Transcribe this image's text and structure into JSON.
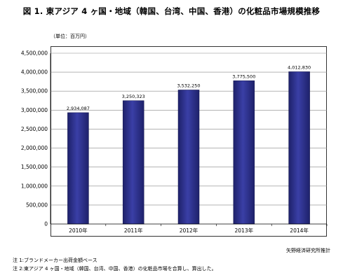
{
  "title": "図 1.  東アジア 4 ヶ国・地域（韓国、台湾、中国、香港）の化粧品市場規模推移",
  "unit_label": "（単位：百万円）",
  "source": "矢野経済研究所推計",
  "notes": [
    "注 1:ブランドメーカー出荷金額ベース",
    "注 2:東アジア 4 ヶ国・地域（韓国、台湾、中国、香港）の化粧品市場を合算し、算出した。"
  ],
  "colors": {
    "bar": "#2b2e85",
    "bar_highlight": "#5a5fc0",
    "grid": "#888888"
  },
  "chart_data": {
    "type": "bar",
    "categories": [
      "2010年",
      "2011年",
      "2012年",
      "2013年",
      "2014年"
    ],
    "values": [
      2934087,
      3250323,
      3532250,
      3775500,
      4012830
    ],
    "value_labels": [
      "2,934,087",
      "3,250,323",
      "3,532,250",
      "3,775,500",
      "4,012,830"
    ],
    "ylim": [
      0,
      4500000
    ],
    "yticks": [
      0,
      500000,
      1000000,
      1500000,
      2000000,
      2500000,
      3000000,
      3500000,
      4000000,
      4500000
    ],
    "ytick_labels": [
      "0",
      "500,000",
      "1,000,000",
      "1,500,000",
      "2,000,000",
      "2,500,000",
      "3,000,000",
      "3,500,000",
      "4,000,000",
      "4,500,000"
    ],
    "grid": true,
    "legend": "none"
  }
}
